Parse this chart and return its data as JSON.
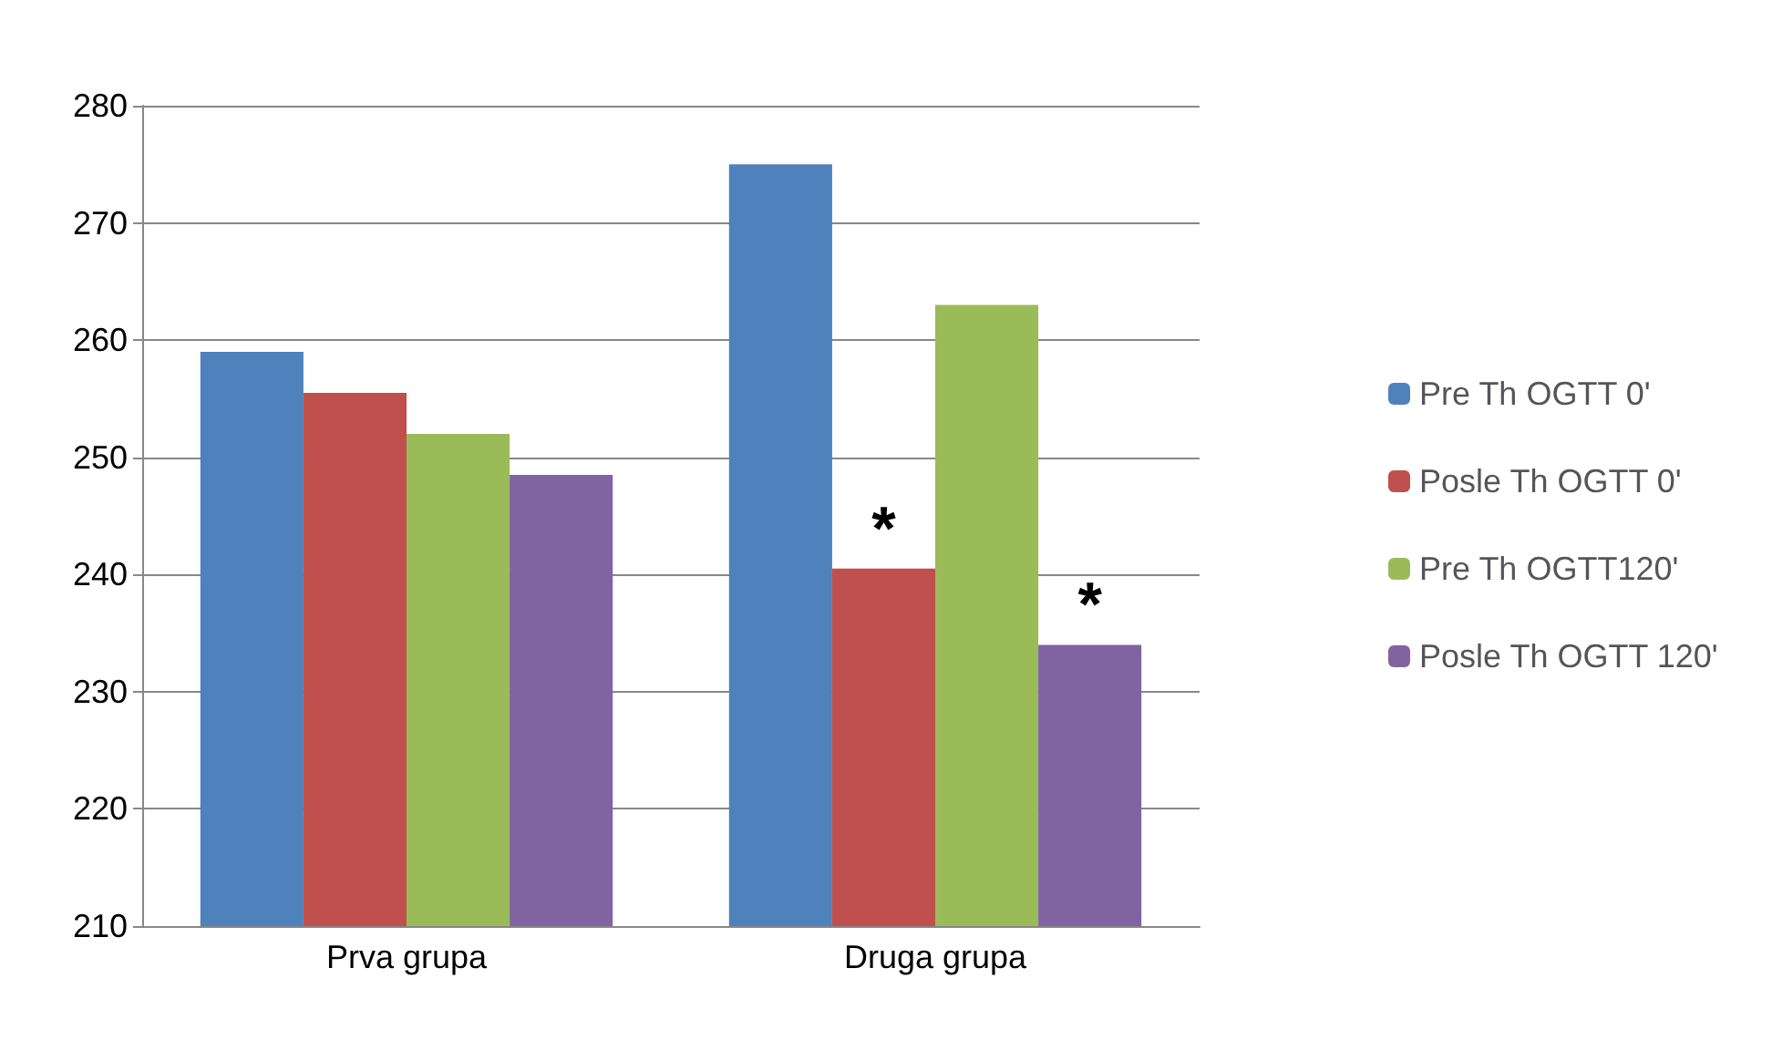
{
  "chart_data": {
    "type": "bar",
    "categories": [
      "Prva grupa",
      "Druga grupa"
    ],
    "series": [
      {
        "name": "Pre Th OGTT 0'",
        "color": "#4f81bd",
        "values": [
          259,
          275
        ]
      },
      {
        "name": "Posle Th OGTT 0'",
        "color": "#c0504d",
        "values": [
          255.5,
          240.5
        ]
      },
      {
        "name": "Pre Th OGTT120'",
        "color": "#9bbb59",
        "values": [
          252,
          263
        ]
      },
      {
        "name": "Posle Th OGTT 120'",
        "color": "#8064a2",
        "values": [
          248.5,
          234
        ]
      }
    ],
    "ylim": [
      210,
      280
    ],
    "yticks": [
      210,
      220,
      230,
      240,
      250,
      260,
      270,
      280
    ],
    "grid": "y",
    "legend": "right",
    "annotations": [
      {
        "text": "*",
        "x": "Druga grupa",
        "y": 240.5
      },
      {
        "text": "*",
        "x": "Druga grupa",
        "y": 234
      }
    ]
  }
}
